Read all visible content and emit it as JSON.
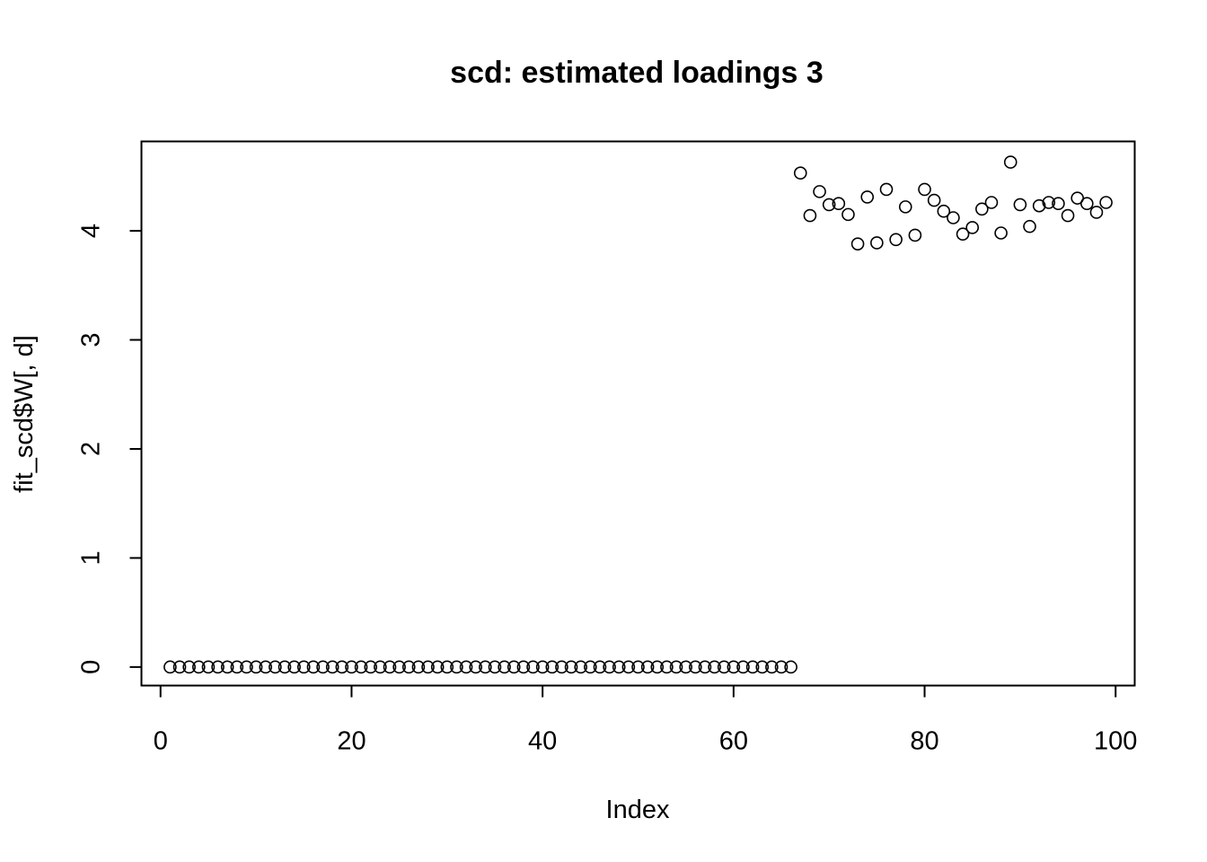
{
  "chart_data": {
    "type": "scatter",
    "title": "scd: estimated loadings 3",
    "xlabel": "Index",
    "ylabel": "fit_scd$W[, d]",
    "xlim": [
      -2,
      102
    ],
    "ylim": [
      -0.17,
      4.82
    ],
    "x_ticks": [
      0,
      20,
      40,
      60,
      80,
      100
    ],
    "y_ticks": [
      0,
      1,
      2,
      3,
      4
    ],
    "x_tick_labels": [
      "0",
      "20",
      "40",
      "60",
      "80",
      "100"
    ],
    "y_tick_labels": [
      "0",
      "1",
      "2",
      "3",
      "4"
    ],
    "marker": "open-circle",
    "grid": false,
    "legend": false,
    "series": [
      {
        "x": [
          1,
          2,
          3,
          4,
          5,
          6,
          7,
          8,
          9,
          10,
          11,
          12,
          13,
          14,
          15,
          16,
          17,
          18,
          19,
          20,
          21,
          22,
          23,
          24,
          25,
          26,
          27,
          28,
          29,
          30,
          31,
          32,
          33,
          34,
          35,
          36,
          37,
          38,
          39,
          40,
          41,
          42,
          43,
          44,
          45,
          46,
          47,
          48,
          49,
          50,
          51,
          52,
          53,
          54,
          55,
          56,
          57,
          58,
          59,
          60,
          61,
          62,
          63,
          64,
          65,
          66,
          67,
          68,
          69,
          70,
          71,
          72,
          73,
          74,
          75,
          76,
          77,
          78,
          79,
          80,
          81,
          82,
          83,
          84,
          85,
          86,
          87,
          88,
          89,
          90,
          91,
          92,
          93,
          94,
          95,
          96,
          97,
          98,
          99
        ],
        "y": [
          0,
          0,
          0,
          0,
          0,
          0,
          0,
          0,
          0,
          0,
          0,
          0,
          0,
          0,
          0,
          0,
          0,
          0,
          0,
          0,
          0,
          0,
          0,
          0,
          0,
          0,
          0,
          0,
          0,
          0,
          0,
          0,
          0,
          0,
          0,
          0,
          0,
          0,
          0,
          0,
          0,
          0,
          0,
          0,
          0,
          0,
          0,
          0,
          0,
          0,
          0,
          0,
          0,
          0,
          0,
          0,
          0,
          0,
          0,
          0,
          0,
          0,
          0,
          0,
          0,
          0,
          4.53,
          4.14,
          4.36,
          4.24,
          4.25,
          4.15,
          3.88,
          4.31,
          3.89,
          4.38,
          3.92,
          4.22,
          3.96,
          4.38,
          4.28,
          4.18,
          4.12,
          3.97,
          4.03,
          4.2,
          4.26,
          3.98,
          4.63,
          4.24,
          4.04,
          4.23,
          4.26,
          4.25,
          4.14,
          4.3,
          4.25,
          4.17,
          4.26
        ]
      }
    ]
  }
}
